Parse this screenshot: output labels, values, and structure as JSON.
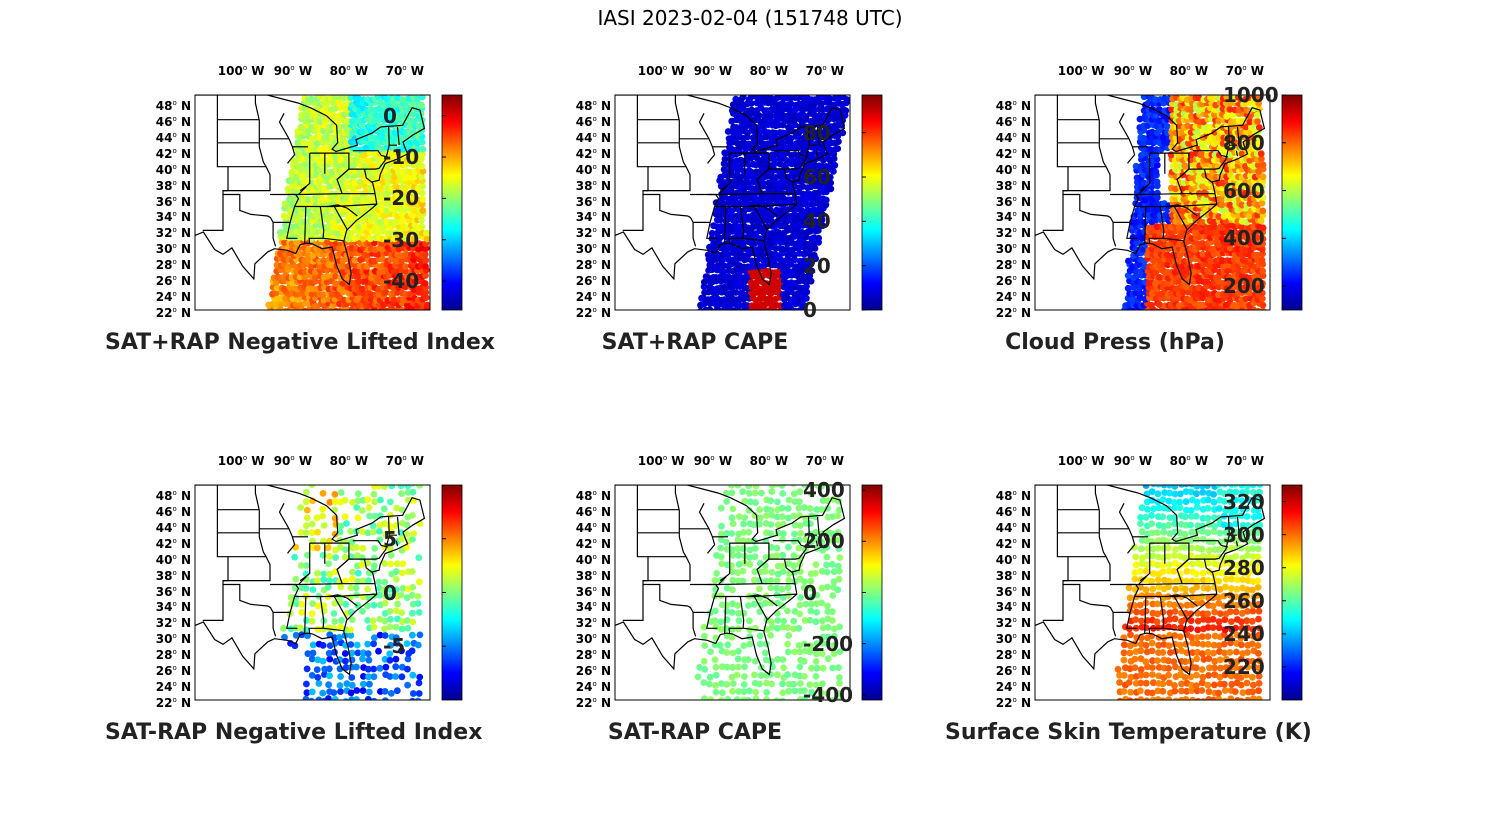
{
  "figure": {
    "title": "IASI 2023-02-04 (151748 UTC)"
  },
  "map": {
    "lon_ticks": [
      "100",
      "90",
      "80",
      "70"
    ],
    "lon_suffix": "W",
    "lat_ticks": [
      "48",
      "46",
      "44",
      "42",
      "40",
      "38",
      "36",
      "34",
      "32",
      "30",
      "28",
      "26",
      "24",
      "22"
    ],
    "lat_suffix": "N",
    "extent_lon": [
      -108,
      -66
    ],
    "extent_lat": [
      22,
      49
    ]
  },
  "colormap": [
    "#00008f",
    "#0000ff",
    "#0080ff",
    "#00ffff",
    "#80ff80",
    "#ffff00",
    "#ff8000",
    "#ff0000",
    "#800000"
  ],
  "chart_data": [
    {
      "type": "map-scatter",
      "title": "SAT+RAP Negative Lifted Index",
      "pattern": "nli",
      "colorbar": {
        "range": [
          -47,
          5
        ],
        "ticks": [
          0,
          -10,
          -20,
          -30,
          -40
        ],
        "labels": [
          "0",
          "-10",
          "-20",
          "-30",
          "-40"
        ]
      }
    },
    {
      "type": "map-scatter",
      "title": "SAT+RAP CAPE",
      "pattern": "cape",
      "colorbar": {
        "range": [
          0,
          97
        ],
        "ticks": [
          80,
          60,
          40,
          20,
          0
        ],
        "labels": [
          "80",
          "60",
          "40",
          "20",
          "0"
        ]
      }
    },
    {
      "type": "map-scatter",
      "title": "Cloud Press (hPa)",
      "pattern": "cloud",
      "colorbar": {
        "range": [
          100,
          1000
        ],
        "ticks": [
          1000,
          800,
          600,
          400,
          200
        ],
        "labels": [
          "1000",
          "800",
          "600",
          "400",
          "200"
        ]
      }
    },
    {
      "type": "map-scatter",
      "title": "SAT-RAP Negative Lifted Index",
      "pattern": "dnli",
      "colorbar": {
        "range": [
          -10,
          10
        ],
        "ticks": [
          5,
          0,
          -5
        ],
        "labels": [
          "5",
          "0",
          "-5"
        ]
      }
    },
    {
      "type": "map-scatter",
      "title": "SAT-RAP CAPE",
      "pattern": "dcape",
      "colorbar": {
        "range": [
          -420,
          420
        ],
        "ticks": [
          400,
          200,
          0,
          -200,
          -400
        ],
        "labels": [
          "400",
          "200",
          "0",
          "-200",
          "-400"
        ]
      }
    },
    {
      "type": "map-scatter",
      "title": "Surface Skin Temperature (K)",
      "pattern": "skin",
      "colorbar": {
        "range": [
          200,
          330
        ],
        "ticks": [
          320,
          300,
          280,
          260,
          240,
          220
        ],
        "labels": [
          "320",
          "300",
          "280",
          "260",
          "240",
          "220"
        ]
      }
    }
  ]
}
